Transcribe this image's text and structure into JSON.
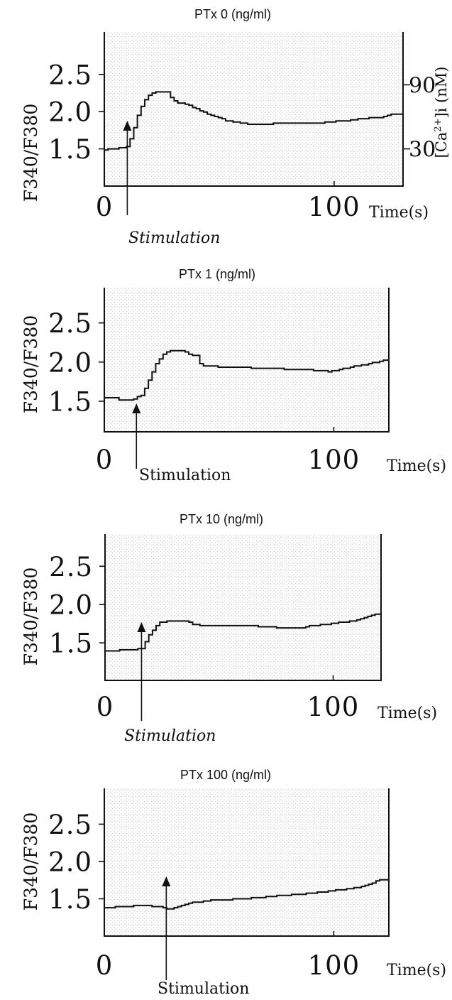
{
  "colors": {
    "trace": "#111111",
    "axis": "#111111",
    "stipple": "#b5b5b5",
    "background": "#ffffff"
  },
  "chart_data": [
    {
      "type": "line",
      "step": true,
      "title": "PTx 0 (ng/ml)",
      "xlabel": "Time(s)",
      "ylabel": "F340/F380",
      "xlim": [
        0,
        130
      ],
      "ylim": [
        1.0,
        3.07
      ],
      "grid": false,
      "legend": false,
      "x_ticks": [
        {
          "value": 0,
          "label": "0"
        },
        {
          "value": 100,
          "label": "100"
        }
      ],
      "y_ticks": [
        {
          "value": 2.5,
          "label": "2.5"
        },
        {
          "value": 2.0,
          "label": "2.0"
        },
        {
          "value": 1.5,
          "label": "1.5"
        }
      ],
      "right_axis": {
        "label_parts": [
          "[Ca",
          "2+",
          "]i (nM)"
        ],
        "ticks": [
          {
            "ratio": 2.36,
            "label": "90"
          },
          {
            "ratio": 1.5,
            "label": "30"
          }
        ]
      },
      "annotation": {
        "text": "Stimulation",
        "x": 10
      },
      "series": [
        {
          "x": [
            0,
            5,
            8,
            10,
            12,
            14,
            17,
            20,
            24,
            27,
            29,
            32,
            36,
            41,
            47,
            53,
            60,
            66,
            75,
            85,
            94,
            100,
            106,
            112,
            120,
            125,
            130
          ],
          "y": [
            1.49,
            1.5,
            1.52,
            1.54,
            1.7,
            1.92,
            2.14,
            2.24,
            2.27,
            2.27,
            2.18,
            2.12,
            2.09,
            2.02,
            1.94,
            1.88,
            1.84,
            1.83,
            1.84,
            1.84,
            1.85,
            1.87,
            1.88,
            1.91,
            1.92,
            1.96,
            1.97
          ]
        }
      ]
    },
    {
      "type": "line",
      "step": true,
      "title": "PTx 1 (ng/ml)",
      "xlabel": "Time(s)",
      "ylabel": "F340/F380",
      "xlim": [
        0,
        124
      ],
      "ylim": [
        1.11,
        2.95
      ],
      "grid": false,
      "legend": false,
      "x_ticks": [
        {
          "value": 0,
          "label": "0"
        },
        {
          "value": 100,
          "label": "100"
        }
      ],
      "y_ticks": [
        {
          "value": 2.5,
          "label": "2.5"
        },
        {
          "value": 2.0,
          "label": "2.0"
        },
        {
          "value": 1.5,
          "label": "1.5"
        }
      ],
      "annotation": {
        "text": "Stimulation",
        "x": 14
      },
      "series": [
        {
          "x": [
            0,
            5,
            7,
            12,
            14,
            16,
            18,
            20,
            22,
            25,
            28,
            33,
            37,
            40,
            42,
            50,
            60,
            70,
            80,
            90,
            97,
            102,
            108,
            114,
            120,
            124
          ],
          "y": [
            1.55,
            1.54,
            1.51,
            1.52,
            1.55,
            1.57,
            1.68,
            1.82,
            1.96,
            2.09,
            2.14,
            2.15,
            2.1,
            2.08,
            1.95,
            1.94,
            1.93,
            1.92,
            1.91,
            1.9,
            1.88,
            1.9,
            1.94,
            1.97,
            2.01,
            2.03
          ]
        }
      ]
    },
    {
      "type": "line",
      "step": true,
      "title": "PTx 10 (ng/ml)",
      "xlabel": "Time(s)",
      "ylabel": "F340/F380",
      "xlim": [
        0,
        121
      ],
      "ylim": [
        1.01,
        2.92
      ],
      "grid": false,
      "legend": false,
      "x_ticks": [
        {
          "value": 0,
          "label": "0"
        },
        {
          "value": 100,
          "label": "100"
        }
      ],
      "y_ticks": [
        {
          "value": 2.5,
          "label": "2.5"
        },
        {
          "value": 2.0,
          "label": "2.0"
        },
        {
          "value": 1.5,
          "label": "1.5"
        }
      ],
      "annotation": {
        "text": "Stimulation",
        "x": 16
      },
      "series": [
        {
          "x": [
            0,
            8,
            16,
            17,
            19,
            22,
            24,
            30,
            36,
            38,
            45,
            55,
            65,
            72,
            78,
            84,
            90,
            96,
            103,
            110,
            114,
            118,
            121
          ],
          "y": [
            1.39,
            1.41,
            1.42,
            1.48,
            1.6,
            1.72,
            1.77,
            1.79,
            1.78,
            1.74,
            1.72,
            1.72,
            1.72,
            1.71,
            1.69,
            1.69,
            1.72,
            1.74,
            1.77,
            1.79,
            1.84,
            1.87,
            1.88
          ]
        }
      ]
    },
    {
      "type": "line",
      "step": true,
      "title": "PTx 100 (ng/ml)",
      "xlabel": "Time(s)",
      "ylabel": "F340/F380",
      "xlim": [
        0,
        124
      ],
      "ylim": [
        1.0,
        2.98
      ],
      "grid": false,
      "legend": false,
      "x_ticks": [
        {
          "value": 0,
          "label": "0"
        },
        {
          "value": 100,
          "label": "100"
        }
      ],
      "y_ticks": [
        {
          "value": 2.5,
          "label": "2.5"
        },
        {
          "value": 2.0,
          "label": "2.0"
        },
        {
          "value": 1.5,
          "label": "1.5"
        }
      ],
      "annotation": {
        "text": "Stimulation",
        "x": 27
      },
      "series": [
        {
          "x": [
            0,
            10,
            18,
            24,
            27,
            29,
            32,
            38,
            47,
            54,
            60,
            72,
            84,
            97,
            105,
            110,
            115,
            118,
            121,
            124
          ],
          "y": [
            1.38,
            1.4,
            1.41,
            1.39,
            1.36,
            1.36,
            1.4,
            1.45,
            1.48,
            1.49,
            1.5,
            1.53,
            1.56,
            1.6,
            1.63,
            1.65,
            1.69,
            1.73,
            1.76,
            1.75
          ]
        }
      ]
    }
  ]
}
